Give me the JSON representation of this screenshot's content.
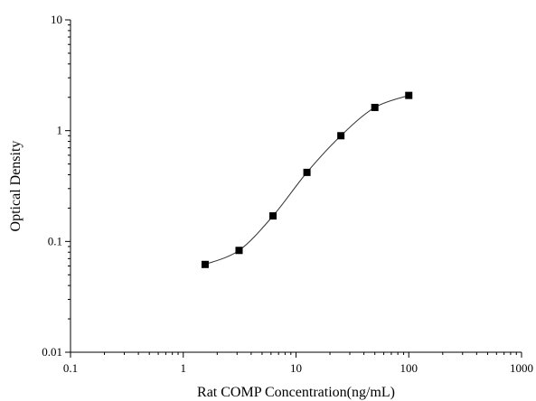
{
  "chart_data": {
    "type": "scatter",
    "xlabel": "Rat COMP Concentration(ng/mL)",
    "ylabel": "Optical Density",
    "x_scale": "log",
    "y_scale": "log",
    "xlim": [
      0.1,
      1000
    ],
    "ylim": [
      0.01,
      10
    ],
    "x_ticks": [
      {
        "value": 0.1,
        "label": "0.1"
      },
      {
        "value": 1,
        "label": "1"
      },
      {
        "value": 10,
        "label": "10"
      },
      {
        "value": 100,
        "label": "100"
      },
      {
        "value": 1000,
        "label": "1000"
      }
    ],
    "y_ticks": [
      {
        "value": 0.01,
        "label": "0.01"
      },
      {
        "value": 0.1,
        "label": "0.1"
      },
      {
        "value": 1,
        "label": "1"
      },
      {
        "value": 10,
        "label": "10"
      }
    ],
    "grid": false,
    "marker": "square",
    "connected": true,
    "series": [
      {
        "x": [
          1.5625,
          3.125,
          6.25,
          12.5,
          25,
          50,
          100
        ],
        "y": [
          0.062,
          0.083,
          0.17,
          0.42,
          0.9,
          1.62,
          2.08
        ]
      }
    ],
    "colors": {
      "marker": "#000000",
      "line": "#333333",
      "axis": "#000000"
    }
  }
}
